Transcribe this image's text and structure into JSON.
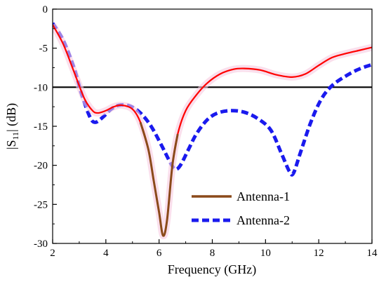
{
  "chart_data": {
    "type": "line",
    "title": "",
    "xlabel": "Frequency  (GHz)",
    "ylabel_main": "|S",
    "ylabel_sub": "11",
    "ylabel_tail": "| (dB)",
    "xlim": [
      2,
      14
    ],
    "ylim": [
      -30,
      0
    ],
    "x_ticks": [
      2,
      4,
      6,
      8,
      10,
      12,
      14
    ],
    "y_ticks": [
      0,
      -5,
      -10,
      -15,
      -20,
      -25,
      -30
    ],
    "x_tick_labels": [
      "2",
      "4",
      "6",
      "8",
      "10",
      "12",
      "14"
    ],
    "y_tick_labels": [
      "0",
      "-5",
      "-10",
      "-15",
      "-20",
      "-25",
      "-30"
    ],
    "grid": false,
    "legend_position": "lower-right",
    "reference_line": {
      "y": -10,
      "color": "#000000"
    },
    "series": [
      {
        "name": "Antenna-1",
        "color": "#ff0000",
        "lower_color": "#8b4a1a",
        "style": "solid",
        "points": [
          [
            2.0,
            -2.0
          ],
          [
            2.4,
            -4.5
          ],
          [
            2.8,
            -8.0
          ],
          [
            3.2,
            -11.5
          ],
          [
            3.5,
            -13.0
          ],
          [
            3.7,
            -13.3
          ],
          [
            4.0,
            -13.0
          ],
          [
            4.3,
            -12.5
          ],
          [
            4.6,
            -12.3
          ],
          [
            5.0,
            -12.8
          ],
          [
            5.3,
            -14.5
          ],
          [
            5.6,
            -18.0
          ],
          [
            5.8,
            -22.0
          ],
          [
            6.0,
            -26.0
          ],
          [
            6.15,
            -29.0
          ],
          [
            6.3,
            -27.0
          ],
          [
            6.5,
            -20.0
          ],
          [
            6.7,
            -16.0
          ],
          [
            7.0,
            -13.0
          ],
          [
            7.4,
            -11.0
          ],
          [
            7.8,
            -9.5
          ],
          [
            8.3,
            -8.3
          ],
          [
            8.8,
            -7.7
          ],
          [
            9.2,
            -7.6
          ],
          [
            9.8,
            -7.8
          ],
          [
            10.4,
            -8.4
          ],
          [
            11.0,
            -8.7
          ],
          [
            11.5,
            -8.3
          ],
          [
            12.0,
            -7.2
          ],
          [
            12.5,
            -6.2
          ],
          [
            13.0,
            -5.7
          ],
          [
            13.5,
            -5.3
          ],
          [
            14.0,
            -4.9
          ]
        ]
      },
      {
        "name": "Antenna-2",
        "color": "#1a1aee",
        "style": "dashed",
        "points": [
          [
            2.0,
            -1.8
          ],
          [
            2.4,
            -4.0
          ],
          [
            2.8,
            -7.5
          ],
          [
            3.1,
            -11.0
          ],
          [
            3.4,
            -13.8
          ],
          [
            3.6,
            -14.5
          ],
          [
            3.9,
            -13.8
          ],
          [
            4.2,
            -12.8
          ],
          [
            4.5,
            -12.3
          ],
          [
            4.9,
            -12.4
          ],
          [
            5.3,
            -13.3
          ],
          [
            5.7,
            -15.0
          ],
          [
            6.1,
            -17.5
          ],
          [
            6.4,
            -19.5
          ],
          [
            6.6,
            -20.5
          ],
          [
            6.8,
            -20.0
          ],
          [
            7.1,
            -18.0
          ],
          [
            7.4,
            -16.0
          ],
          [
            7.8,
            -14.2
          ],
          [
            8.2,
            -13.3
          ],
          [
            8.7,
            -13.0
          ],
          [
            9.2,
            -13.2
          ],
          [
            9.7,
            -14.0
          ],
          [
            10.2,
            -15.5
          ],
          [
            10.6,
            -18.5
          ],
          [
            10.9,
            -20.8
          ],
          [
            11.05,
            -21.0
          ],
          [
            11.3,
            -18.5
          ],
          [
            11.7,
            -14.5
          ],
          [
            12.1,
            -11.5
          ],
          [
            12.5,
            -9.8
          ],
          [
            13.0,
            -8.6
          ],
          [
            13.5,
            -7.7
          ],
          [
            14.0,
            -7.1
          ]
        ]
      }
    ]
  }
}
